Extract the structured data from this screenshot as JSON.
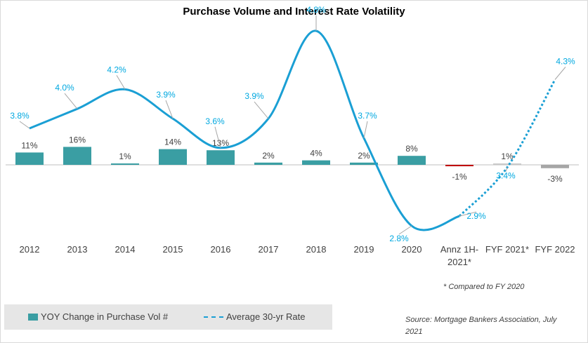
{
  "chart_data": {
    "type": "bar",
    "title": "Purchase Volume and Interest Rate Volatility",
    "categories": [
      "2012",
      "2013",
      "2014",
      "2015",
      "2016",
      "2017",
      "2018",
      "2019",
      "2020",
      "Annz 1H-2021*",
      "FYF 2021*",
      "FYF 2022"
    ],
    "category_lines": [
      [
        "2012"
      ],
      [
        "2013"
      ],
      [
        "2014"
      ],
      [
        "2015"
      ],
      [
        "2016"
      ],
      [
        "2017"
      ],
      [
        "2018"
      ],
      [
        "2019"
      ],
      [
        "2020"
      ],
      [
        "Annz 1H-",
        "2021*"
      ],
      [
        "FYF 2021*"
      ],
      [
        "FYF 2022"
      ]
    ],
    "series": [
      {
        "name": "YOY Change in Purchase Vol #",
        "type": "bar",
        "values": [
          11,
          16,
          1,
          14,
          13,
          2,
          4,
          2,
          8,
          -1,
          1,
          -3
        ],
        "labels": [
          "11%",
          "16%",
          "1%",
          "14%",
          "13%",
          "2%",
          "4%",
          "2%",
          "8%",
          "-1%",
          "1%",
          "-3%"
        ],
        "colors": [
          "#3a9ea3",
          "#3a9ea3",
          "#3a9ea3",
          "#3a9ea3",
          "#3a9ea3",
          "#3a9ea3",
          "#3a9ea3",
          "#3a9ea3",
          "#3a9ea3",
          "#c00000",
          "#c9c9c9",
          "#a6a6a6"
        ]
      },
      {
        "name": "Average 30-yr Rate",
        "type": "line",
        "values": [
          3.8,
          4.0,
          4.2,
          3.9,
          3.6,
          3.9,
          4.8,
          3.7,
          2.8,
          2.9,
          3.4,
          4.3
        ],
        "labels": [
          "3.8%",
          "4.0%",
          "4.2%",
          "3.9%",
          "3.6%",
          "3.9%",
          "4.8%",
          "3.7%",
          "2.8%",
          "2.9%",
          "3.4%",
          "4.3%"
        ],
        "color": "#1a9fd4",
        "dashed_from_index": 9
      }
    ],
    "legend": "bottom-left",
    "grid": false
  },
  "footnote": "* Compared to FY 2020",
  "source": "Source: Mortgage Bankers Association, July 2021",
  "colors": {
    "bar": "#3a9ea3",
    "line": "#1a9fd4",
    "negative_bar": "#c00000",
    "forecast_bar": "#a6a6a6"
  }
}
